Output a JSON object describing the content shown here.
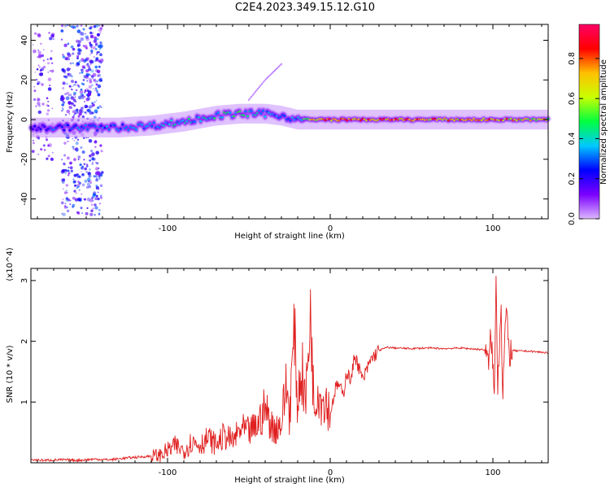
{
  "title": "C2E4.2023.349.15.12.G10",
  "chart_data": [
    {
      "type": "heatmap",
      "xlabel": "Height of straight line (km)",
      "ylabel": "Frequency (Hz)",
      "xlim": [
        -184,
        134
      ],
      "ylim": [
        -50,
        48
      ],
      "xticks": [
        -100,
        0,
        100
      ],
      "yticks": [
        -40,
        -20,
        0,
        20,
        40
      ],
      "colorbar": {
        "label": "Normalized spectral amplitude",
        "range": [
          0.0,
          0.97
        ],
        "ticks": [
          0.0,
          0.2,
          0.4,
          0.6,
          0.8
        ],
        "tick_labels": [
          "0.0",
          "0.2",
          "0.4",
          "0.6",
          "0.8"
        ],
        "colormap": [
          "#dcb7ff",
          "#7b00ff",
          "#0000ff",
          "#00c8ff",
          "#00ff40",
          "#c8ff00",
          "#ffc000",
          "#ff0000",
          "#ff0066"
        ]
      },
      "ridge": {
        "x": [
          -184,
          -170,
          -150,
          -130,
          -110,
          -90,
          -70,
          -55,
          -40,
          -30,
          -20,
          -10,
          0,
          20,
          60,
          95,
          100,
          105,
          110,
          134
        ],
        "freq": [
          -4,
          -4,
          -4,
          -4,
          -3,
          -1,
          2,
          3,
          3,
          2,
          0,
          0,
          0,
          0,
          0,
          0,
          0,
          0,
          0,
          0
        ],
        "amplitude": [
          0.25,
          0.3,
          0.3,
          0.35,
          0.35,
          0.4,
          0.45,
          0.45,
          0.35,
          0.3,
          0.4,
          0.7,
          0.8,
          0.8,
          0.75,
          0.7,
          0.85,
          0.8,
          0.7,
          0.65
        ]
      },
      "scatter_bands": [
        {
          "x_range": [
            -165,
            -140
          ],
          "freq_range": [
            -48,
            48
          ],
          "amplitude": 0.15
        },
        {
          "x_range": [
            -183,
            -170
          ],
          "freq_range": [
            -20,
            45
          ],
          "amplitude": 0.1
        }
      ],
      "rising_branch": {
        "x": [
          -50,
          -40,
          -30
        ],
        "freq": [
          10,
          20,
          28
        ]
      }
    },
    {
      "type": "line",
      "xlabel": "Height of straight line (km)",
      "ylabel": "SNR (10 * v/v)",
      "y_multiplier": "(x10^4)",
      "xlim": [
        -184,
        134
      ],
      "ylim": [
        0,
        3.2
      ],
      "xticks": [
        -100,
        0,
        100
      ],
      "yticks": [
        1,
        2,
        3
      ],
      "color": "#e02020",
      "x": [
        -184,
        -175,
        -165,
        -155,
        -145,
        -135,
        -125,
        -115,
        -105,
        -100,
        -95,
        -90,
        -85,
        -80,
        -75,
        -70,
        -65,
        -60,
        -55,
        -50,
        -45,
        -40,
        -35,
        -30,
        -27,
        -25,
        -22,
        -20,
        -18,
        -15,
        -12,
        -10,
        -8,
        -5,
        -3,
        0,
        3,
        5,
        8,
        10,
        13,
        15,
        20,
        25,
        30,
        35,
        40,
        50,
        60,
        70,
        80,
        90,
        95,
        97,
        99,
        101,
        102,
        103,
        105,
        106,
        108,
        110,
        112,
        115,
        120,
        125,
        130,
        134
      ],
      "y": [
        0.05,
        0.04,
        0.05,
        0.04,
        0.06,
        0.05,
        0.08,
        0.1,
        0.12,
        0.2,
        0.28,
        0.2,
        0.35,
        0.3,
        0.4,
        0.3,
        0.45,
        0.35,
        0.55,
        0.5,
        0.6,
        0.9,
        0.55,
        0.65,
        1.3,
        0.8,
        2.2,
        0.9,
        1.6,
        1.0,
        2.55,
        0.85,
        1.3,
        1.0,
        1.1,
        0.8,
        1.2,
        1.3,
        1.1,
        1.5,
        1.35,
        1.8,
        1.35,
        1.7,
        1.85,
        1.9,
        1.89,
        1.88,
        1.89,
        1.88,
        1.89,
        1.87,
        1.86,
        1.6,
        2.1,
        1.05,
        3.2,
        1.25,
        2.7,
        1.1,
        2.5,
        1.8,
        1.85,
        1.84,
        1.84,
        1.83,
        1.82,
        1.81
      ]
    }
  ]
}
